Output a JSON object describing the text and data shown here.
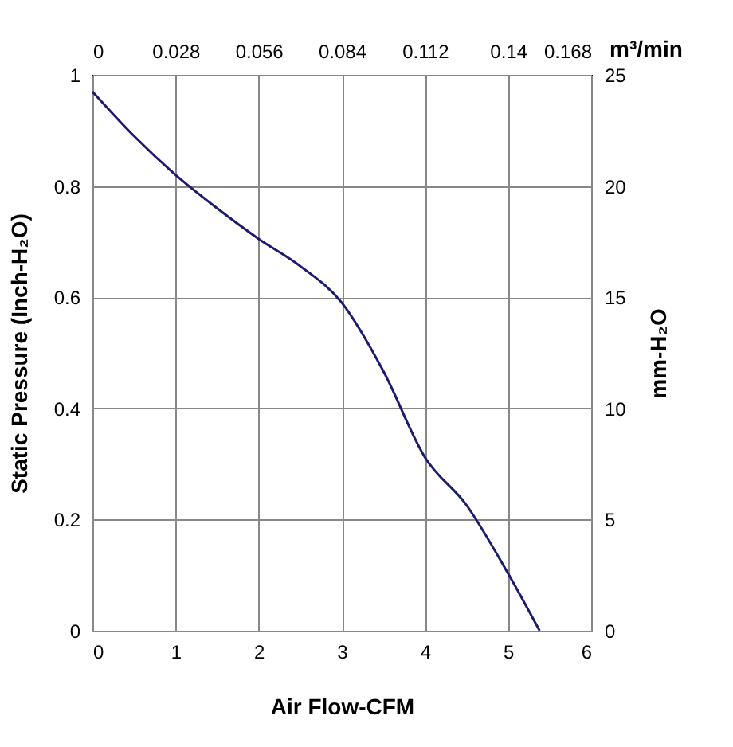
{
  "chart_data": {
    "type": "line",
    "xlabel": "Air Flow-CFM",
    "ylabel": "Static Pressure (Inch-H₂O)",
    "y2label": "mm-H₂O",
    "x2label": "m³/min",
    "x": [
      0,
      0.5,
      1,
      1.5,
      2,
      2.5,
      3,
      3.5,
      4,
      4.5,
      5,
      5.38
    ],
    "series": [
      {
        "color": "#1c1c6e",
        "values": [
          0.97,
          0.89,
          0.82,
          0.76,
          0.705,
          0.656,
          0.59,
          0.467,
          0.312,
          0.226,
          0.103,
          0
        ]
      }
    ],
    "xlim": [
      0,
      6
    ],
    "xticks": [
      0,
      1,
      2,
      3,
      4,
      5,
      6
    ],
    "ylim": [
      0,
      1
    ],
    "yticks": [
      0,
      0.2,
      0.4,
      0.6,
      0.8,
      1
    ],
    "x2lim": [
      0,
      0.168
    ],
    "x2ticks": [
      0,
      0.028,
      0.056,
      0.084,
      0.112,
      0.14,
      0.168
    ],
    "y2lim": [
      0,
      25
    ],
    "y2ticks": [
      0,
      5,
      10,
      15,
      20,
      25
    ],
    "grid": true,
    "marker": "none",
    "line_style": "solid"
  }
}
